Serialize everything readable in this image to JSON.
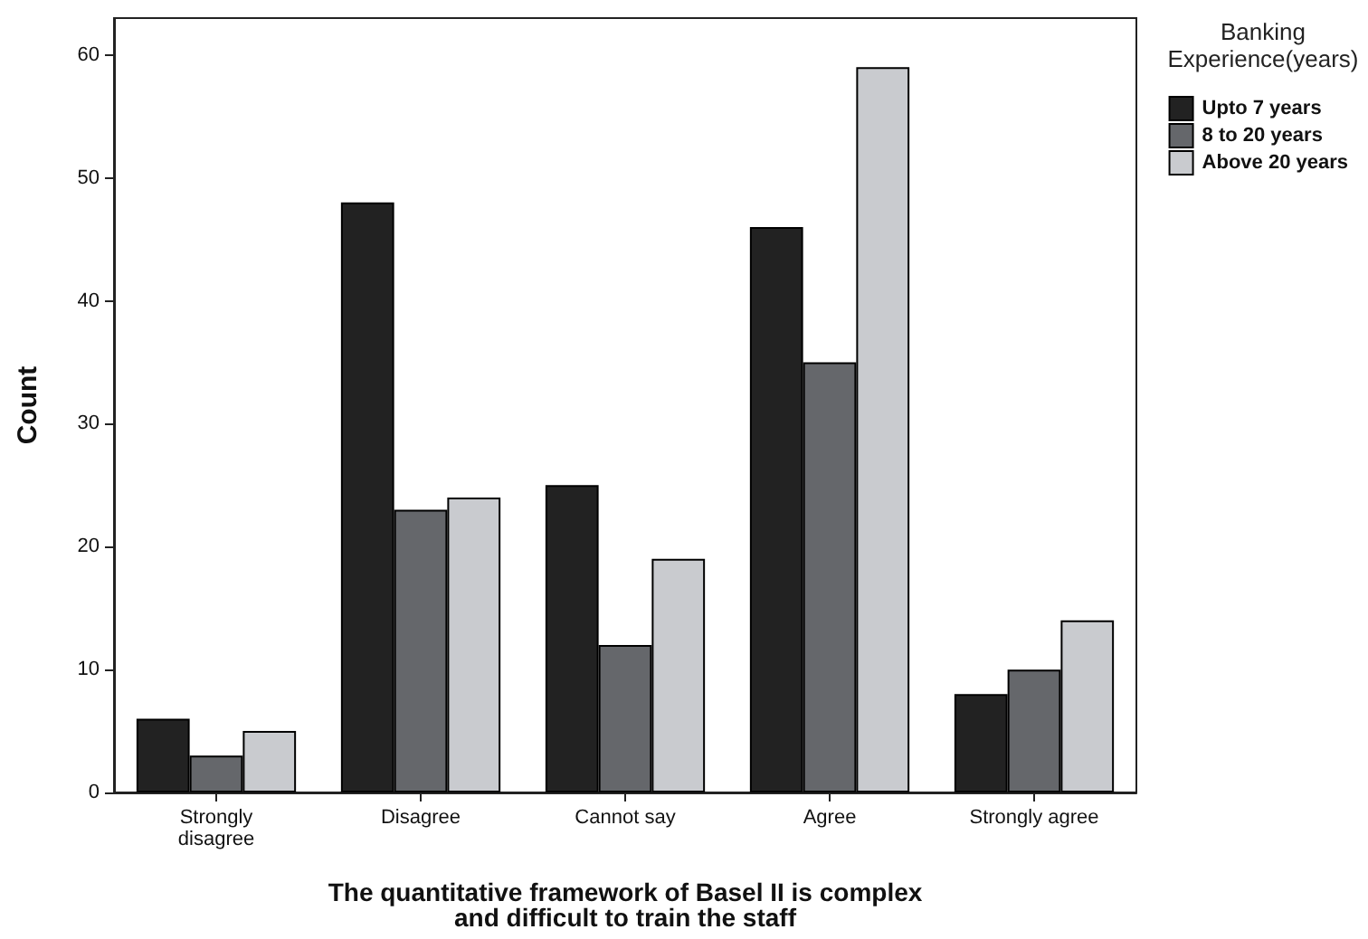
{
  "chart_data": {
    "type": "bar",
    "xlabel": "The quantitative framework of Basel II is complex\nand difficult to train the staff",
    "ylabel": "Count",
    "legend_title": "Banking\nExperience(years)",
    "categories": [
      "Strongly\ndisagree",
      "Disagree",
      "Cannot say",
      "Agree",
      "Strongly agree"
    ],
    "series": [
      {
        "name": "Upto 7 years",
        "color": "#222222",
        "values": [
          6,
          48,
          25,
          46,
          8
        ]
      },
      {
        "name": "8 to 20 years",
        "color": "#65676b",
        "values": [
          3,
          23,
          12,
          35,
          10
        ]
      },
      {
        "name": "Above 20 years",
        "color": "#c9cbcf",
        "values": [
          5,
          24,
          19,
          59,
          14
        ]
      }
    ],
    "ylim": [
      0,
      63
    ],
    "yticks": [
      0,
      10,
      20,
      30,
      40,
      50,
      60
    ],
    "grid": false,
    "legend": "top right"
  }
}
